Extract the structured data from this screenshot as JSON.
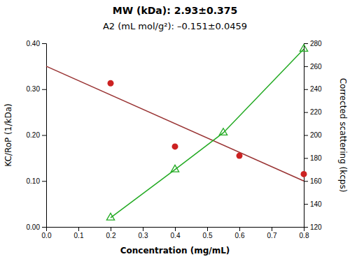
{
  "chart_data": {
    "type": "line",
    "title": "MW (kDa): 2.93±0.375",
    "subtitle": "A2 (mL mol/g²): –0.151±0.0459",
    "xlabel": "Concentration (mg/mL)",
    "ylabel": "KC/RoP (1/kDa)",
    "y2label": "Corrected scattering (kcps)",
    "xlim": [
      0.0,
      0.8
    ],
    "xticks": [
      {
        "value": 0.0,
        "label": "0.0"
      },
      0.1,
      0.2,
      0.3,
      0.4,
      0.5,
      0.6,
      0.7,
      0.8
    ],
    "ylim": [
      0.0,
      0.4
    ],
    "yticks": [
      {
        "value": 0.0,
        "label": "0.00"
      },
      {
        "value": 0.1,
        "label": "0.10"
      },
      {
        "value": 0.2,
        "label": "0.20"
      },
      {
        "value": 0.3,
        "label": "0.30"
      },
      {
        "value": 0.4,
        "label": "0.40"
      }
    ],
    "y2lim": [
      120,
      280
    ],
    "y2ticks": [
      120,
      140,
      160,
      180,
      200,
      220,
      240,
      260,
      280
    ],
    "grid": false,
    "series": [
      {
        "type": "line",
        "color": "#993333",
        "x": [
          0.0,
          0.8
        ],
        "values": [
          0.35,
          0.1
        ]
      },
      {
        "type": "scatter",
        "color": "#cc2222",
        "marker": "circle",
        "x": [
          0.2,
          0.4,
          0.6,
          0.8
        ],
        "values": [
          0.313,
          0.175,
          0.155,
          0.115
        ]
      },
      {
        "type": "line",
        "color": "#22aa22",
        "marker": "triangle",
        "axis": "y2",
        "x": [
          0.2,
          0.4,
          0.55,
          0.8
        ],
        "values": [
          128,
          170,
          202,
          275
        ]
      }
    ]
  }
}
